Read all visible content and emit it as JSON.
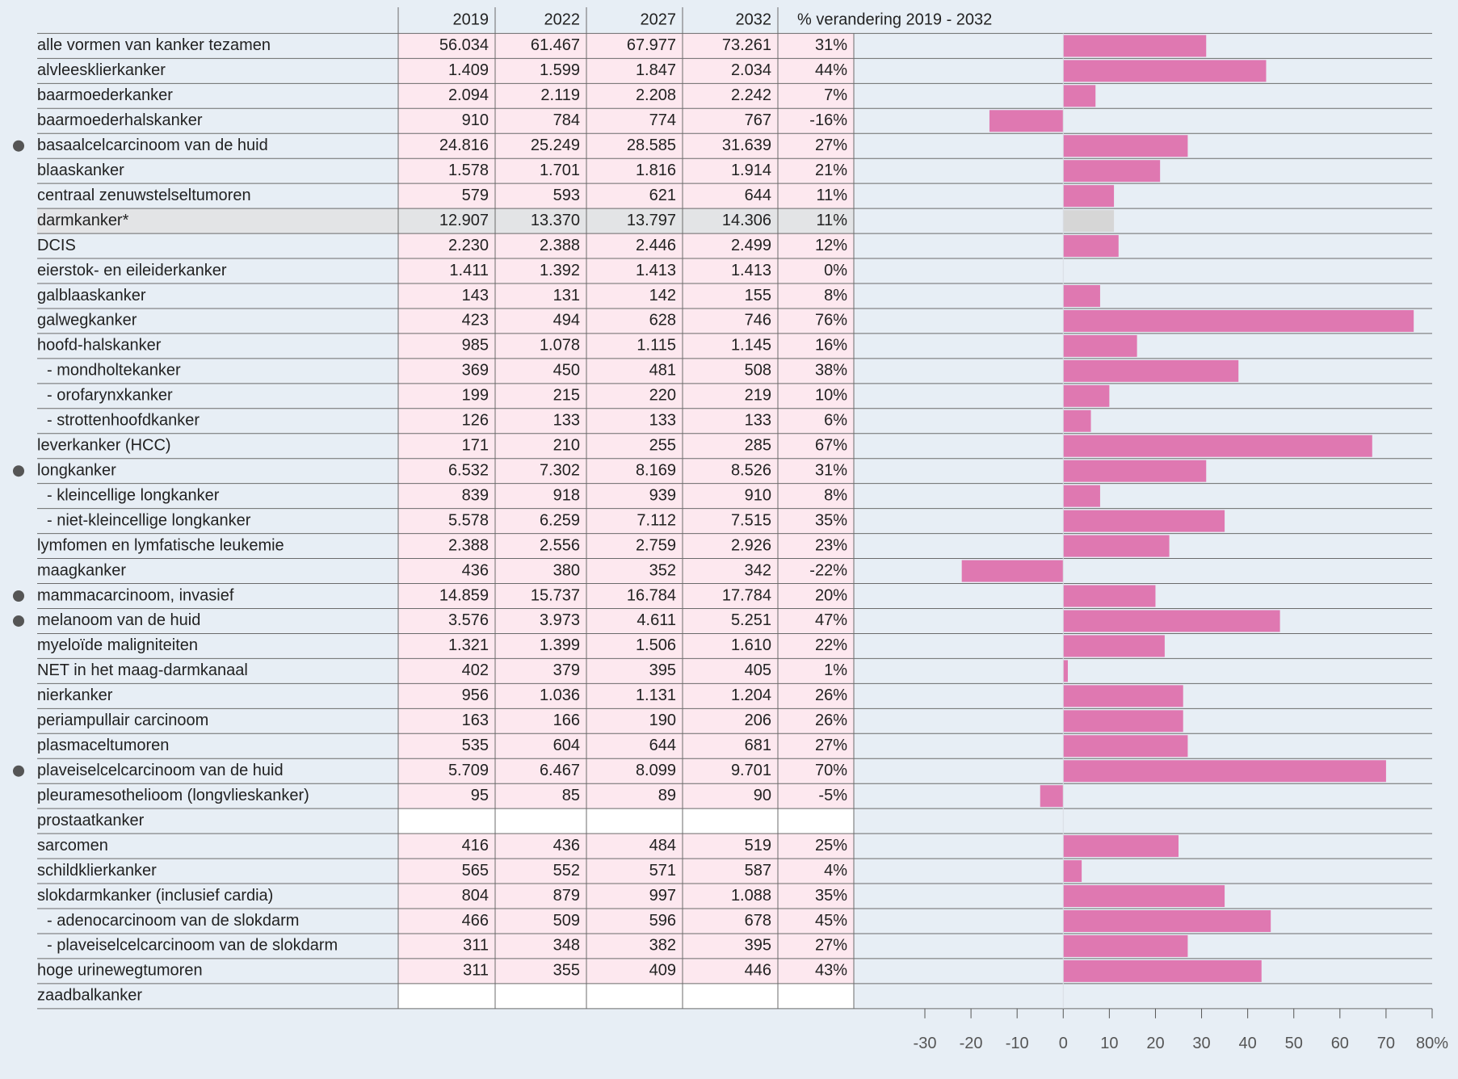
{
  "chart_data": {
    "type": "bar",
    "columns": [
      "2019",
      "2022",
      "2027",
      "2032",
      "% verandering 2019 - 2032"
    ],
    "categories": [
      "alle vormen van kanker tezamen",
      "alvleesklierkanker",
      "baarmoederkanker",
      "baarmoederhalskanker",
      "basaalcelcarcinoom van de huid",
      "blaaskanker",
      "centraal zenuwstelseltumoren",
      "darmkanker*",
      "DCIS",
      "eierstok- en eileiderkanker",
      "galblaaskanker",
      "galwegkanker",
      "hoofd-halskanker",
      "- mondholtekanker",
      "- orofarynxkanker",
      "- strottenhoofdkanker",
      "leverkanker (HCC)",
      "longkanker",
      "- kleincellige longkanker",
      "- niet-kleincellige longkanker",
      "lymfomen en lymfatische leukemie",
      "maagkanker",
      "mammacarcinoom, invasief",
      "melanoom van de huid",
      "myeloïde maligniteiten",
      "NET in het maag-darmkanaal",
      "nierkanker",
      "periampullair carcinoom",
      "plasmaceltumoren",
      "plaveiselcelcarcinoom van de huid",
      "pleuramesothelioom (longvlieskanker)",
      "prostaatkanker",
      "sarcomen",
      "schildklierkanker",
      "slokdarmkanker (inclusief cardia)",
      "- adenocarcinoom van de slokdarm",
      "- plaveiselcelcarcinoom van de slokdarm",
      "hoge urinewegtumoren",
      "zaadbalkanker"
    ],
    "table": [
      [
        "56.034",
        "61.467",
        "67.977",
        "73.261"
      ],
      [
        "1.409",
        "1.599",
        "1.847",
        "2.034"
      ],
      [
        "2.094",
        "2.119",
        "2.208",
        "2.242"
      ],
      [
        "910",
        "784",
        "774",
        "767"
      ],
      [
        "24.816",
        "25.249",
        "28.585",
        "31.639"
      ],
      [
        "1.578",
        "1.701",
        "1.816",
        "1.914"
      ],
      [
        "579",
        "593",
        "621",
        "644"
      ],
      [
        "12.907",
        "13.370",
        "13.797",
        "14.306"
      ],
      [
        "2.230",
        "2.388",
        "2.446",
        "2.499"
      ],
      [
        "1.411",
        "1.392",
        "1.413",
        "1.413"
      ],
      [
        "143",
        "131",
        "142",
        "155"
      ],
      [
        "423",
        "494",
        "628",
        "746"
      ],
      [
        "985",
        "1.078",
        "1.115",
        "1.145"
      ],
      [
        "369",
        "450",
        "481",
        "508"
      ],
      [
        "199",
        "215",
        "220",
        "219"
      ],
      [
        "126",
        "133",
        "133",
        "133"
      ],
      [
        "171",
        "210",
        "255",
        "285"
      ],
      [
        "6.532",
        "7.302",
        "8.169",
        "8.526"
      ],
      [
        "839",
        "918",
        "939",
        "910"
      ],
      [
        "5.578",
        "6.259",
        "7.112",
        "7.515"
      ],
      [
        "2.388",
        "2.556",
        "2.759",
        "2.926"
      ],
      [
        "436",
        "380",
        "352",
        "342"
      ],
      [
        "14.859",
        "15.737",
        "16.784",
        "17.784"
      ],
      [
        "3.576",
        "3.973",
        "4.611",
        "5.251"
      ],
      [
        "1.321",
        "1.399",
        "1.506",
        "1.610"
      ],
      [
        "402",
        "379",
        "395",
        "405"
      ],
      [
        "956",
        "1.036",
        "1.131",
        "1.204"
      ],
      [
        "163",
        "166",
        "190",
        "206"
      ],
      [
        "535",
        "604",
        "644",
        "681"
      ],
      [
        "5.709",
        "6.467",
        "8.099",
        "9.701"
      ],
      [
        "95",
        "85",
        "89",
        "90"
      ],
      null,
      [
        "416",
        "436",
        "484",
        "519"
      ],
      [
        "565",
        "552",
        "571",
        "587"
      ],
      [
        "804",
        "879",
        "997",
        "1.088"
      ],
      [
        "466",
        "509",
        "596",
        "678"
      ],
      [
        "311",
        "348",
        "382",
        "395"
      ],
      [
        "311",
        "355",
        "409",
        "446"
      ],
      null
    ],
    "values": [
      31,
      44,
      7,
      -16,
      27,
      21,
      11,
      11,
      12,
      0,
      8,
      76,
      16,
      38,
      10,
      6,
      67,
      31,
      8,
      35,
      23,
      -22,
      20,
      47,
      22,
      1,
      26,
      26,
      27,
      70,
      -5,
      null,
      25,
      4,
      35,
      45,
      27,
      43,
      null
    ],
    "value_labels": [
      "31%",
      "44%",
      "7%",
      "-16%",
      "27%",
      "21%",
      "11%",
      "11%",
      "12%",
      "0%",
      "8%",
      "76%",
      "16%",
      "38%",
      "10%",
      "6%",
      "67%",
      "31%",
      "8%",
      "35%",
      "23%",
      "-22%",
      "20%",
      "47%",
      "22%",
      "1%",
      "26%",
      "26%",
      "27%",
      "70%",
      "-5%",
      null,
      "25%",
      "4%",
      "35%",
      "45%",
      "27%",
      "43%",
      null
    ],
    "color": "#df78b1",
    "muted_color": "#d6d6d6",
    "muted_categories": [
      7
    ],
    "marked_categories": [
      4,
      17,
      22,
      23,
      29
    ],
    "xlim": [
      -30,
      80
    ],
    "xticks": [
      -30,
      -20,
      -10,
      0,
      10,
      20,
      30,
      40,
      50,
      60,
      70,
      {
        "value": 80,
        "label": "80%"
      }
    ]
  }
}
